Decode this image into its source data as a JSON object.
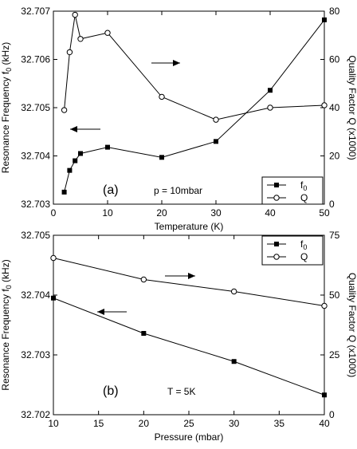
{
  "chart_data": [
    {
      "type": "line",
      "panel_label": "(a)",
      "annotation": "p = 10mbar",
      "xlabel": "Temperature (K)",
      "ylabel_left": "Resonance Frequency f",
      "ylabel_left_sub": "0",
      "ylabel_left_unit": " (kHz)",
      "ylabel_right": "Quality Factor Q (x1000)",
      "xlim": [
        0,
        50
      ],
      "xticks": [
        0,
        10,
        20,
        30,
        40,
        50
      ],
      "ylim_left": [
        32.703,
        32.707
      ],
      "yticks_left": [
        "32.703",
        "32.704",
        "32.705",
        "32.706",
        "32.707"
      ],
      "ylim_right": [
        0,
        80
      ],
      "yticks_right": [
        "0",
        "20",
        "40",
        "60",
        "80"
      ],
      "legend_position": "bottom-right",
      "series": [
        {
          "name": "f",
          "name_sub": "0",
          "axis": "left",
          "marker": "filled-square",
          "x": [
            2,
            3,
            4,
            5,
            10,
            20,
            30,
            40,
            50
          ],
          "y": [
            32.70325,
            32.7037,
            32.7039,
            32.70405,
            32.70418,
            32.70397,
            32.7043,
            32.70536,
            32.70682
          ]
        },
        {
          "name": "Q",
          "axis": "right",
          "marker": "open-circle",
          "x": [
            2,
            3,
            4,
            5,
            10,
            20,
            30,
            40,
            50
          ],
          "y": [
            39,
            63,
            78.5,
            68.5,
            71,
            44.5,
            35,
            40,
            41
          ]
        }
      ],
      "arrows": [
        {
          "direction": "right",
          "target": "Q"
        },
        {
          "direction": "left",
          "target": "f"
        }
      ]
    },
    {
      "type": "line",
      "panel_label": "(b)",
      "annotation": "T = 5K",
      "xlabel": "Pressure (mbar)",
      "ylabel_left": "Resonance Frequency f",
      "ylabel_left_sub": "0",
      "ylabel_left_unit": " (kHz)",
      "ylabel_right": "Quality Factor Q (x1000)",
      "xlim": [
        10,
        40
      ],
      "xticks": [
        10,
        15,
        20,
        25,
        30,
        35,
        40
      ],
      "ylim_left": [
        32.702,
        32.705
      ],
      "yticks_left": [
        "32.702",
        "32.703",
        "32.704",
        "32.705"
      ],
      "ylim_right": [
        0,
        75
      ],
      "yticks_right": [
        "0",
        "25",
        "50",
        "75"
      ],
      "legend_position": "top-right",
      "series": [
        {
          "name": "f",
          "name_sub": "0",
          "axis": "left",
          "marker": "filled-square",
          "x": [
            10,
            20,
            30,
            40
          ],
          "y": [
            32.70395,
            32.70336,
            32.70289,
            32.70233
          ]
        },
        {
          "name": "Q",
          "axis": "right",
          "marker": "open-circle",
          "x": [
            10,
            20,
            30,
            40
          ],
          "y": [
            65.5,
            56.5,
            51.5,
            45.5
          ]
        }
      ],
      "arrows": [
        {
          "direction": "right",
          "target": "Q"
        },
        {
          "direction": "left",
          "target": "f"
        }
      ]
    }
  ]
}
